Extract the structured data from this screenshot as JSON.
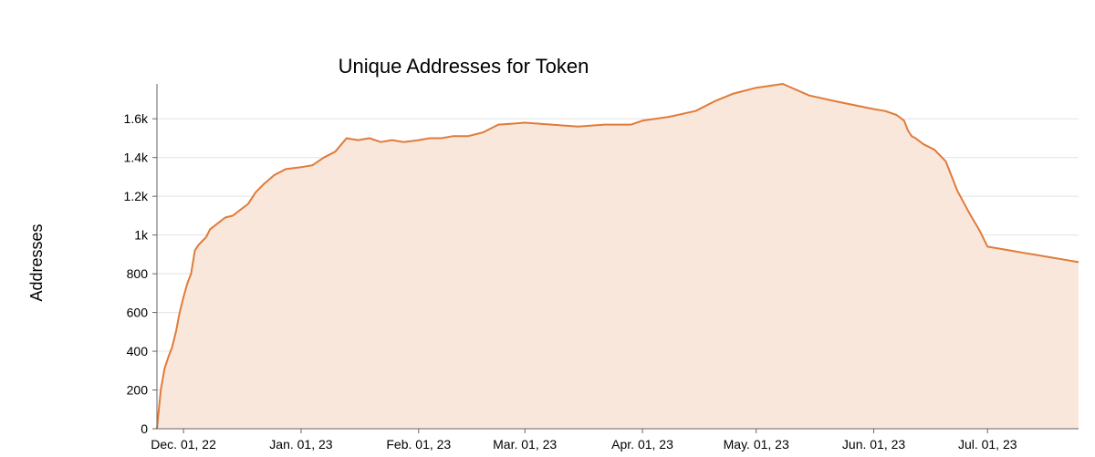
{
  "chart_data": {
    "type": "area",
    "title": "Unique Addresses for Token",
    "xlabel": "",
    "ylabel": "Addresses",
    "ylim": [
      0,
      1780
    ],
    "y_ticks": [
      0,
      200,
      400,
      600,
      800,
      1000,
      1200,
      1400,
      1600
    ],
    "y_tick_labels": [
      "0",
      "200",
      "400",
      "600",
      "800",
      "1k",
      "1.2k",
      "1.4k",
      "1.6k"
    ],
    "x_range": [
      "2022-11-24",
      "2023-07-25"
    ],
    "x_ticks": [
      "2022-12-01",
      "2023-01-01",
      "2023-02-01",
      "2023-03-01",
      "2023-04-01",
      "2023-05-01",
      "2023-06-01",
      "2023-07-01"
    ],
    "x_tick_labels": [
      "Dec. 01, 22",
      "Jan. 01, 23",
      "Feb. 01, 23",
      "Mar. 01, 23",
      "Apr. 01, 23",
      "May. 01, 23",
      "Jun. 01, 23",
      "Jul. 01, 23"
    ],
    "grid": true,
    "legend": "none",
    "colors": {
      "line": "#e07b39",
      "fill": "#fae7dc"
    },
    "series": [
      {
        "x": [
          "2022-11-24",
          "2022-11-25",
          "2022-11-26",
          "2022-11-27",
          "2022-11-28",
          "2022-11-29",
          "2022-11-30",
          "2022-12-01",
          "2022-12-02",
          "2022-12-03",
          "2022-12-04",
          "2022-12-05",
          "2022-12-06",
          "2022-12-07",
          "2022-12-08",
          "2022-12-10",
          "2022-12-12",
          "2022-12-14",
          "2022-12-16",
          "2022-12-18",
          "2022-12-20",
          "2022-12-22",
          "2022-12-25",
          "2022-12-28",
          "2023-01-01",
          "2023-01-04",
          "2023-01-07",
          "2023-01-10",
          "2023-01-13",
          "2023-01-16",
          "2023-01-19",
          "2023-01-22",
          "2023-01-25",
          "2023-01-28",
          "2023-02-01",
          "2023-02-04",
          "2023-02-07",
          "2023-02-10",
          "2023-02-14",
          "2023-02-18",
          "2023-02-22",
          "2023-02-26",
          "2023-03-01",
          "2023-03-08",
          "2023-03-15",
          "2023-03-22",
          "2023-03-29",
          "2023-04-01",
          "2023-04-08",
          "2023-04-15",
          "2023-04-20",
          "2023-04-25",
          "2023-05-01",
          "2023-05-08",
          "2023-05-15",
          "2023-05-22",
          "2023-05-27",
          "2023-06-01",
          "2023-06-04",
          "2023-06-07",
          "2023-06-09",
          "2023-06-10",
          "2023-06-11",
          "2023-06-12",
          "2023-06-14",
          "2023-06-17",
          "2023-06-20",
          "2023-06-23",
          "2023-06-26",
          "2023-06-29",
          "2023-07-01",
          "2023-07-04",
          "2023-07-07",
          "2023-07-10",
          "2023-07-13",
          "2023-07-16",
          "2023-07-19",
          "2023-07-22",
          "2023-07-25"
        ],
        "values": [
          0,
          200,
          310,
          370,
          420,
          500,
          600,
          680,
          750,
          800,
          920,
          950,
          970,
          990,
          1030,
          1060,
          1090,
          1100,
          1130,
          1160,
          1220,
          1260,
          1310,
          1340,
          1350,
          1360,
          1400,
          1430,
          1500,
          1490,
          1500,
          1480,
          1490,
          1480,
          1490,
          1500,
          1500,
          1510,
          1510,
          1530,
          1570,
          1575,
          1580,
          1570,
          1560,
          1570,
          1570,
          1590,
          1610,
          1640,
          1690,
          1730,
          1760,
          1780,
          1720,
          1690,
          1670,
          1650,
          1640,
          1620,
          1590,
          1540,
          1510,
          1500,
          1470,
          1440,
          1380,
          1230,
          1120,
          1020,
          940,
          930,
          920,
          910,
          900,
          890,
          880,
          870,
          860
        ],
        "values_note": ""
      }
    ]
  }
}
